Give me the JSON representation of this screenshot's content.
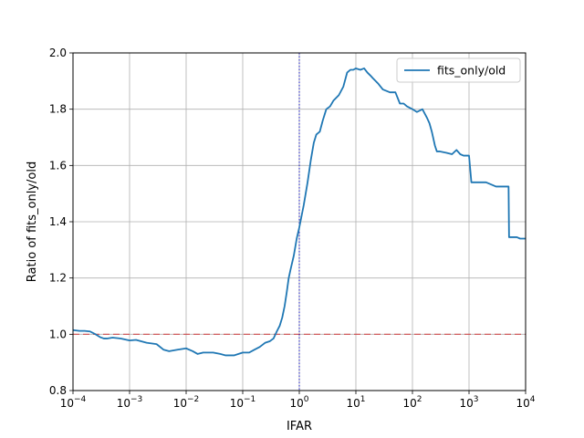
{
  "chart_data": {
    "type": "line",
    "title": "",
    "xlabel": "IFAR",
    "ylabel": "Ratio of fits_only/old",
    "xscale": "log",
    "xlim": [
      0.0001,
      10000
    ],
    "ylim": [
      0.8,
      2.0
    ],
    "grid": true,
    "legend_position": "top-right",
    "x_ticks": [
      {
        "base": "10",
        "exp": "−4",
        "value": 0.0001
      },
      {
        "base": "10",
        "exp": "−3",
        "value": 0.001
      },
      {
        "base": "10",
        "exp": "−2",
        "value": 0.01
      },
      {
        "base": "10",
        "exp": "−1",
        "value": 0.1
      },
      {
        "base": "10",
        "exp": "0",
        "value": 1
      },
      {
        "base": "10",
        "exp": "1",
        "value": 10
      },
      {
        "base": "10",
        "exp": "2",
        "value": 100
      },
      {
        "base": "10",
        "exp": "3",
        "value": 1000
      },
      {
        "base": "10",
        "exp": "4",
        "value": 10000
      }
    ],
    "y_ticks": [
      {
        "label": "0.8",
        "value": 0.8
      },
      {
        "label": "1.0",
        "value": 1.0
      },
      {
        "label": "1.2",
        "value": 1.2
      },
      {
        "label": "1.4",
        "value": 1.4
      },
      {
        "label": "1.6",
        "value": 1.6
      },
      {
        "label": "1.8",
        "value": 1.8
      },
      {
        "label": "2.0",
        "value": 2.0
      }
    ],
    "reference_lines": [
      {
        "orientation": "horizontal",
        "value": 1.0,
        "style": "dashed",
        "color": "#d62728"
      },
      {
        "orientation": "vertical",
        "value": 1,
        "style": "dotted",
        "color": "#0000cc"
      }
    ],
    "series": [
      {
        "name": "fits_only/old",
        "color": "#1f77b4",
        "x": [
          0.0001,
          0.00013,
          0.00016,
          0.0002,
          0.00025,
          0.0003,
          0.00035,
          0.0004,
          0.0005,
          0.0007,
          0.001,
          0.0013,
          0.0016,
          0.002,
          0.003,
          0.004,
          0.005,
          0.007,
          0.01,
          0.013,
          0.016,
          0.02,
          0.03,
          0.04,
          0.05,
          0.07,
          0.1,
          0.13,
          0.16,
          0.2,
          0.25,
          0.3,
          0.35,
          0.4,
          0.45,
          0.5,
          0.55,
          0.6,
          0.65,
          0.7,
          0.8,
          0.9,
          1.0,
          1.2,
          1.4,
          1.6,
          1.8,
          2.0,
          2.3,
          2.6,
          3.0,
          3.5,
          4.0,
          5.0,
          6.0,
          7.0,
          8.0,
          9.0,
          10,
          12,
          14,
          16,
          18,
          20,
          25,
          30,
          40,
          50,
          60,
          70,
          80,
          100,
          120,
          150,
          180,
          200,
          220,
          250,
          270,
          300,
          400,
          500,
          600,
          700,
          800,
          900,
          1000,
          1100,
          2000,
          3000,
          4000,
          5000,
          5100,
          6000,
          7000,
          8000,
          9000,
          10000
        ],
        "values": [
          1.015,
          1.012,
          1.012,
          1.01,
          1.0,
          0.99,
          0.985,
          0.985,
          0.988,
          0.985,
          0.978,
          0.98,
          0.975,
          0.97,
          0.965,
          0.945,
          0.94,
          0.945,
          0.95,
          0.94,
          0.93,
          0.935,
          0.935,
          0.93,
          0.925,
          0.925,
          0.935,
          0.935,
          0.945,
          0.955,
          0.97,
          0.975,
          0.985,
          1.01,
          1.03,
          1.06,
          1.1,
          1.15,
          1.2,
          1.23,
          1.28,
          1.34,
          1.38,
          1.46,
          1.54,
          1.62,
          1.68,
          1.71,
          1.72,
          1.76,
          1.8,
          1.81,
          1.83,
          1.85,
          1.88,
          1.93,
          1.94,
          1.94,
          1.945,
          1.94,
          1.945,
          1.93,
          1.92,
          1.91,
          1.89,
          1.87,
          1.86,
          1.86,
          1.82,
          1.82,
          1.81,
          1.8,
          1.79,
          1.8,
          1.77,
          1.75,
          1.72,
          1.67,
          1.65,
          1.65,
          1.645,
          1.64,
          1.655,
          1.64,
          1.635,
          1.635,
          1.635,
          1.54,
          1.54,
          1.525,
          1.525,
          1.525,
          1.345,
          1.345,
          1.345,
          1.34,
          1.34,
          1.34
        ]
      }
    ]
  }
}
